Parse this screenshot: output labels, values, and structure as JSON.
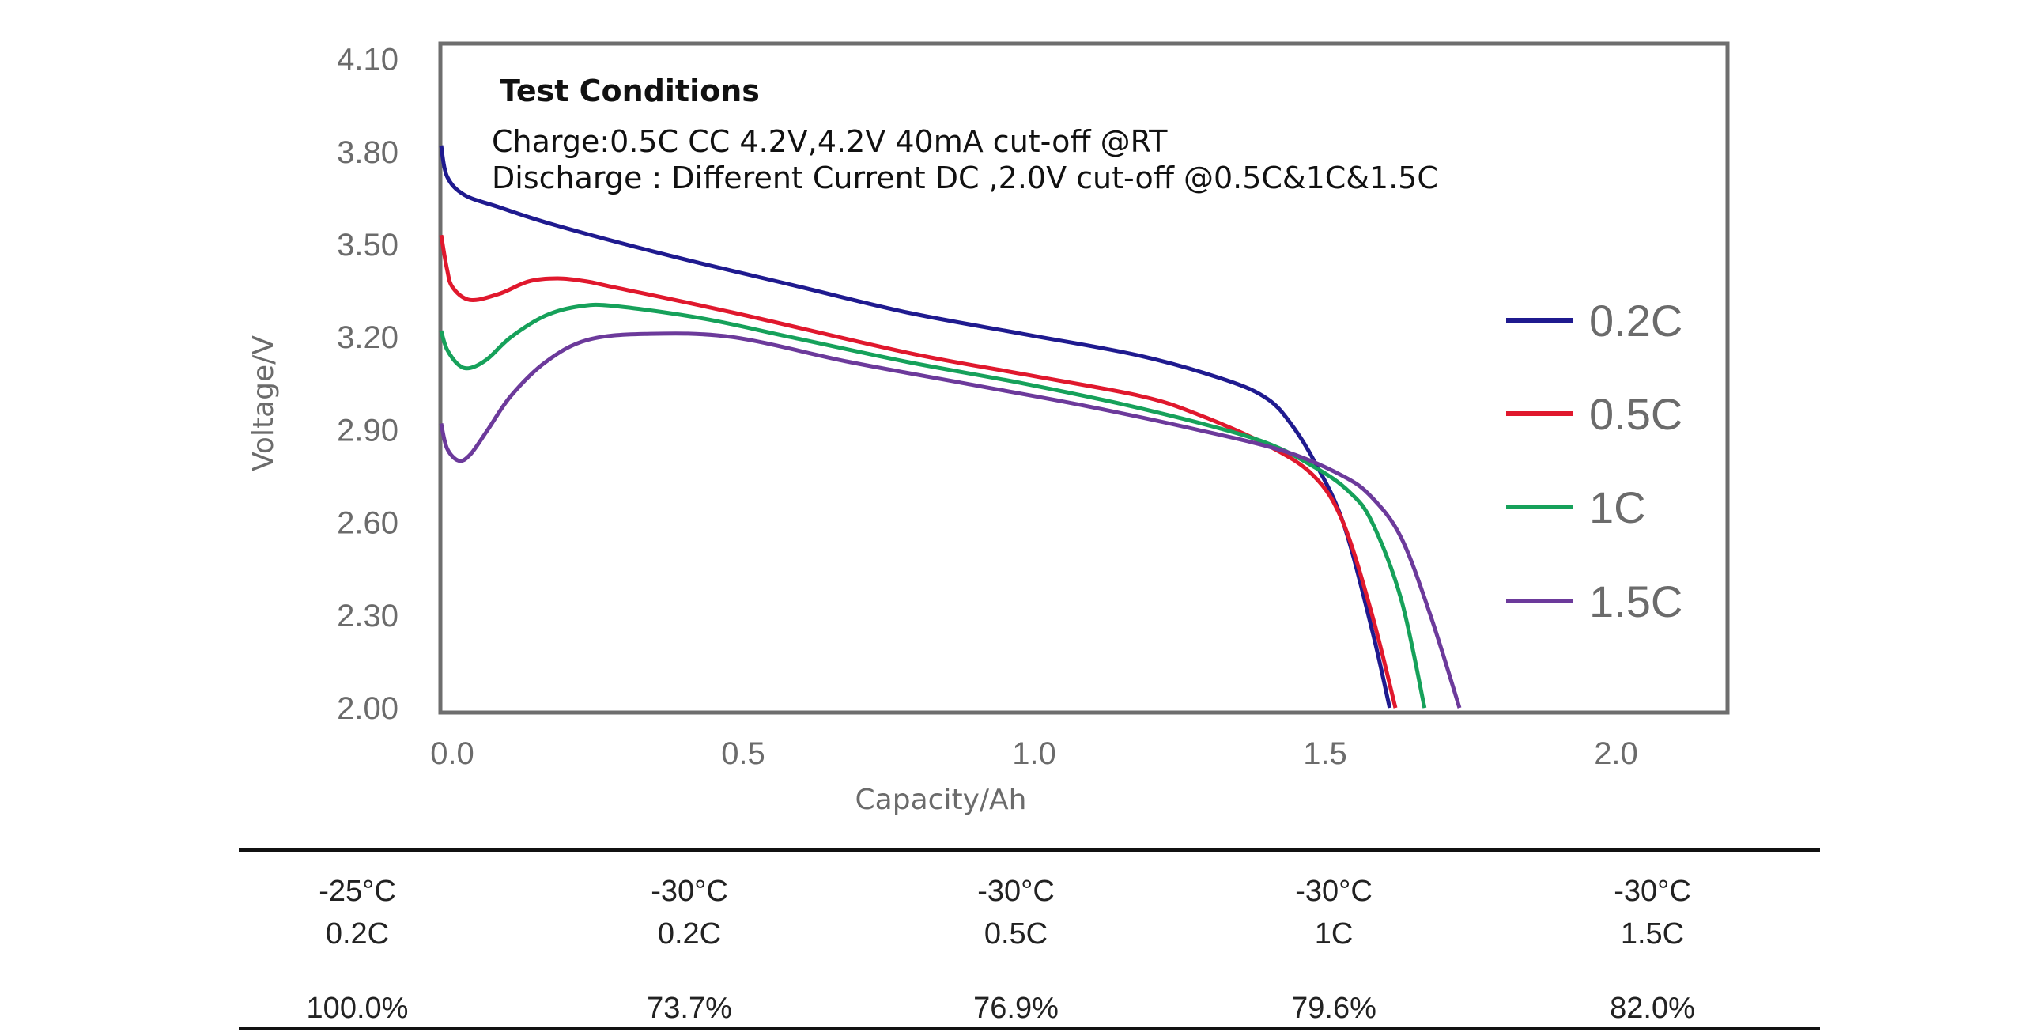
{
  "chart_data": {
    "type": "line",
    "xlabel": "Capacity/Ah",
    "ylabel": "Voltage/V",
    "xlim": [
      0,
      2.2
    ],
    "ylim": [
      2.0,
      4.15
    ],
    "x_ticks": [
      "0.0",
      "0.5",
      "1.0",
      "1.5",
      "2.0"
    ],
    "x_tick_values": [
      0,
      0.5,
      1.0,
      1.5,
      2.0
    ],
    "y_ticks": [
      "4.10",
      "3.80",
      "3.50",
      "3.20",
      "2.90",
      "2.60",
      "2.30",
      "2.00"
    ],
    "y_tick_values": [
      4.1,
      3.8,
      3.5,
      3.2,
      2.9,
      2.6,
      2.3,
      2.0
    ],
    "grid": false,
    "legend_position": "right",
    "annotation": {
      "title": "Test Conditions",
      "lines": [
        "Charge:0.5C CC 4.2V,4.2V 40mA cut-off @RT",
        "Discharge : Different Current DC ,2.0V cut-off @0.5C&1C&1.5C"
      ]
    },
    "series": [
      {
        "name": "0.2C",
        "color": "#1f1a8f",
        "x": [
          0.0,
          0.01,
          0.04,
          0.1,
          0.2,
          0.4,
          0.6,
          0.8,
          1.0,
          1.2,
          1.35,
          1.42,
          1.46,
          1.5,
          1.55,
          1.6,
          1.63
        ],
        "y": [
          3.82,
          3.72,
          3.66,
          3.62,
          3.56,
          3.46,
          3.37,
          3.28,
          3.21,
          3.14,
          3.06,
          3.0,
          2.92,
          2.8,
          2.6,
          2.25,
          2.0
        ]
      },
      {
        "name": "0.5C",
        "color": "#e0182d",
        "x": [
          0.0,
          0.01,
          0.02,
          0.05,
          0.1,
          0.15,
          0.2,
          0.25,
          0.3,
          0.5,
          0.8,
          1.0,
          1.2,
          1.3,
          1.42,
          1.5,
          1.55,
          1.6,
          1.64
        ],
        "y": [
          3.53,
          3.42,
          3.36,
          3.32,
          3.34,
          3.38,
          3.39,
          3.38,
          3.36,
          3.28,
          3.15,
          3.08,
          3.01,
          2.95,
          2.85,
          2.75,
          2.6,
          2.3,
          2.0
        ]
      },
      {
        "name": "1C",
        "color": "#16a15a",
        "x": [
          0.0,
          0.01,
          0.03,
          0.05,
          0.08,
          0.12,
          0.18,
          0.24,
          0.3,
          0.45,
          0.6,
          0.8,
          1.0,
          1.2,
          1.4,
          1.5,
          1.56,
          1.6,
          1.65,
          1.69
        ],
        "y": [
          3.22,
          3.16,
          3.11,
          3.1,
          3.13,
          3.2,
          3.27,
          3.3,
          3.3,
          3.26,
          3.2,
          3.12,
          3.05,
          2.97,
          2.87,
          2.78,
          2.7,
          2.6,
          2.35,
          2.0
        ]
      },
      {
        "name": "1.5C",
        "color": "#6c3a9b",
        "x": [
          0.0,
          0.01,
          0.03,
          0.05,
          0.08,
          0.12,
          0.18,
          0.25,
          0.35,
          0.5,
          0.7,
          0.9,
          1.1,
          1.3,
          1.45,
          1.55,
          1.6,
          1.65,
          1.7,
          1.75
        ],
        "y": [
          2.92,
          2.84,
          2.8,
          2.82,
          2.9,
          3.01,
          3.12,
          3.19,
          3.21,
          3.2,
          3.12,
          3.05,
          2.98,
          2.9,
          2.83,
          2.75,
          2.68,
          2.55,
          2.3,
          2.0
        ]
      }
    ]
  },
  "results": [
    {
      "temp": "-25°C",
      "rate": "0.2C",
      "value": "100.0%"
    },
    {
      "temp": "-30°C",
      "rate": "0.2C",
      "value": "73.7%"
    },
    {
      "temp": "-30°C",
      "rate": "0.5C",
      "value": "76.9%"
    },
    {
      "temp": "-30°C",
      "rate": "1C",
      "value": "79.6%"
    },
    {
      "temp": "-30°C",
      "rate": "1.5C",
      "value": "82.0%"
    }
  ]
}
